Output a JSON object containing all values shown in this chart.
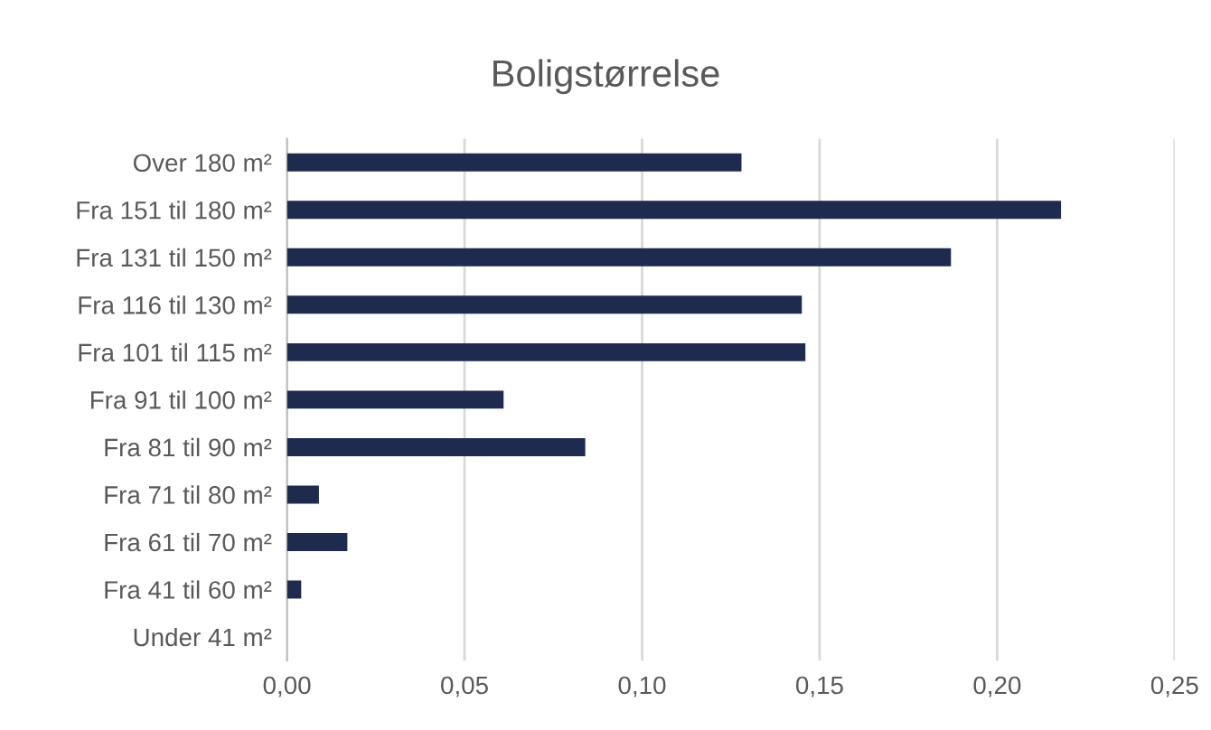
{
  "chart_data": {
    "type": "bar",
    "orientation": "horizontal",
    "title": "Boligstørrelse",
    "categories": [
      "Over 180 m²",
      "Fra 151 til 180 m²",
      "Fra 131 til 150 m²",
      "Fra 116 til 130 m²",
      "Fra 101 til 115 m²",
      "Fra 91 til 100 m²",
      "Fra 81 til 90 m²",
      "Fra 71 til 80 m²",
      "Fra 61 til 70 m²",
      "Fra 41 til 60 m²",
      "Under 41 m²"
    ],
    "values": [
      0.128,
      0.218,
      0.187,
      0.145,
      0.146,
      0.061,
      0.084,
      0.009,
      0.017,
      0.004,
      0
    ],
    "color": "#1f2a4f",
    "xlim": [
      0,
      0.25
    ],
    "xticks": [
      {
        "value": 0,
        "label": "0,00"
      },
      {
        "value": 0.05,
        "label": "0,05"
      },
      {
        "value": 0.1,
        "label": "0,10"
      },
      {
        "value": 0.15,
        "label": "0,15"
      },
      {
        "value": 0.2,
        "label": "0,20"
      },
      {
        "value": 0.25,
        "label": "0,25"
      }
    ],
    "grid": "x",
    "legend": false
  }
}
